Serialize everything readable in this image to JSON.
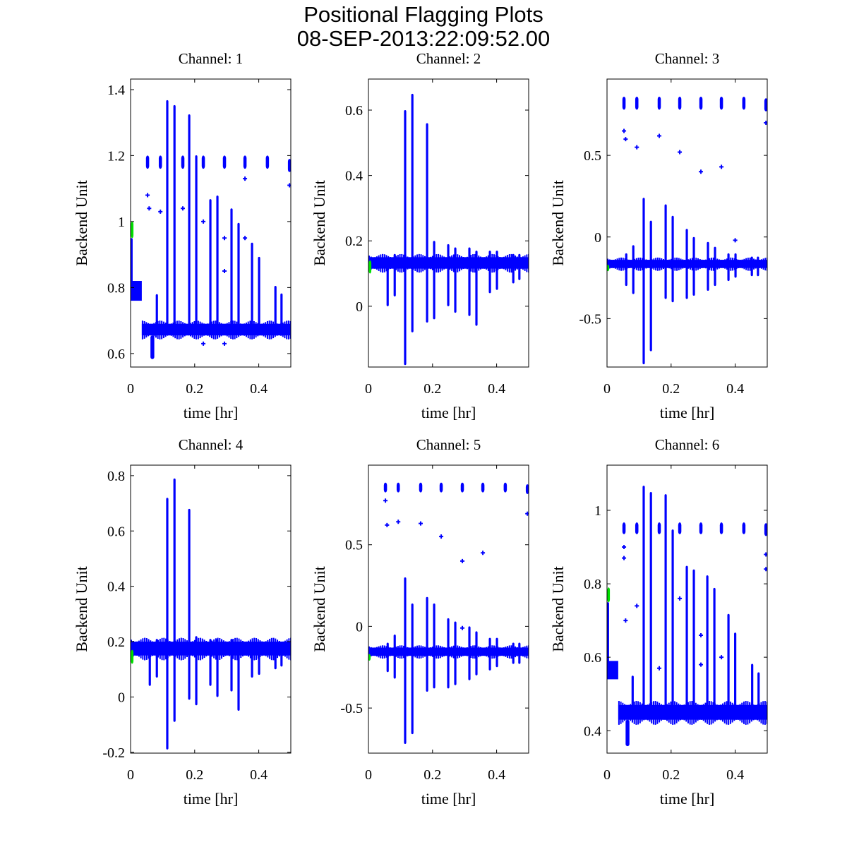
{
  "chart_data": {
    "type": "scatter",
    "title": "Positional Flagging Plots",
    "subtitle": "08-SEP-2013:22:09:52.00",
    "colors": {
      "data": "#0000ff",
      "flagged": "#00e000",
      "axes": "#000000"
    },
    "panels": [
      {
        "title": "Channel: 1",
        "xlabel": "time [hr]",
        "ylabel": "Backend Unit",
        "xlim": [
          0,
          0.5
        ],
        "ylim": [
          0.559,
          1.432
        ],
        "xticks": [
          0,
          0.2,
          0.4
        ],
        "yticks": [
          0.6,
          0.8,
          1,
          1.2,
          1.4
        ],
        "baseline": {
          "t": [
            0.035,
            0.5
          ],
          "min": 0.655,
          "max": 0.69
        },
        "early": {
          "t": [
            0,
            0.035
          ],
          "min": 0.76,
          "max": 0.82
        },
        "dip": {
          "t": 0.068,
          "min": 0.583
        },
        "green": {
          "t": 0.005,
          "min": 0.95,
          "max": 1.0
        },
        "spikes": [
          [
            0.003,
            0.76,
            0.95
          ],
          [
            0.082,
            0.66,
            0.78
          ],
          [
            0.1145,
            0.66,
            1.368
          ],
          [
            0.137,
            0.66,
            1.353
          ],
          [
            0.183,
            0.66,
            1.325
          ],
          [
            0.205,
            0.66,
            1.201
          ],
          [
            0.249,
            0.66,
            1.068
          ],
          [
            0.271,
            0.66,
            1.079
          ],
          [
            0.315,
            0.66,
            1.04
          ],
          [
            0.337,
            0.66,
            0.996
          ],
          [
            0.379,
            0.66,
            0.936
          ],
          [
            0.401,
            0.66,
            0.893
          ],
          [
            0.452,
            0.66,
            0.805
          ],
          [
            0.471,
            0.66,
            0.782
          ]
        ],
        "clusters": [
          [
            0.053,
            1.16,
            1.2
          ],
          [
            0.093,
            1.16,
            1.2
          ],
          [
            0.163,
            1.16,
            1.2
          ],
          [
            0.227,
            1.16,
            1.2
          ],
          [
            0.293,
            1.16,
            1.2
          ],
          [
            0.357,
            1.16,
            1.2
          ],
          [
            0.427,
            1.16,
            1.2
          ],
          [
            0.496,
            1.15,
            1.19
          ]
        ],
        "outliers": [
          [
            0.053,
            1.08
          ],
          [
            0.058,
            1.04
          ],
          [
            0.093,
            1.03
          ],
          [
            0.163,
            1.04
          ],
          [
            0.227,
            1.0
          ],
          [
            0.293,
            0.95
          ],
          [
            0.293,
            0.85
          ],
          [
            0.357,
            0.95
          ],
          [
            0.357,
            1.13
          ],
          [
            0.496,
            1.11
          ],
          [
            0.227,
            0.63
          ],
          [
            0.293,
            0.63
          ]
        ]
      },
      {
        "title": "Channel: 2",
        "xlabel": "time [hr]",
        "ylabel": "Backend Unit",
        "xlim": [
          0,
          0.5
        ],
        "ylim": [
          -0.186,
          0.695
        ],
        "xticks": [
          0,
          0.2,
          0.4
        ],
        "yticks": [
          0,
          0.2,
          0.4,
          0.6
        ],
        "baseline": {
          "t": [
            0,
            0.5
          ],
          "min": 0.115,
          "max": 0.15
        },
        "green": {
          "t": 0.005,
          "min": 0.1,
          "max": 0.14
        },
        "spikes": [
          [
            0.06,
            0.0,
            0.14
          ],
          [
            0.082,
            0.03,
            0.16
          ],
          [
            0.1145,
            -0.18,
            0.6
          ],
          [
            0.137,
            -0.08,
            0.65
          ],
          [
            0.183,
            -0.05,
            0.56
          ],
          [
            0.205,
            -0.04,
            0.2
          ],
          [
            0.249,
            0.0,
            0.19
          ],
          [
            0.271,
            -0.02,
            0.18
          ],
          [
            0.315,
            -0.03,
            0.18
          ],
          [
            0.337,
            -0.06,
            0.17
          ],
          [
            0.379,
            0.04,
            0.17
          ],
          [
            0.401,
            0.05,
            0.17
          ],
          [
            0.452,
            0.07,
            0.16
          ],
          [
            0.471,
            0.08,
            0.16
          ]
        ],
        "clusters": [],
        "outliers": []
      },
      {
        "title": "Channel: 3",
        "xlabel": "time [hr]",
        "ylabel": "Backend Unit",
        "xlim": [
          0,
          0.5
        ],
        "ylim": [
          -0.797,
          0.968
        ],
        "xticks": [
          0,
          0.2,
          0.4
        ],
        "yticks": [
          -0.5,
          0,
          0.5
        ],
        "baseline": {
          "t": [
            0,
            0.5
          ],
          "min": -0.19,
          "max": -0.14
        },
        "green": {
          "t": 0.003,
          "min": -0.21,
          "max": -0.17
        },
        "spikes": [
          [
            0.06,
            -0.3,
            -0.1
          ],
          [
            0.082,
            -0.35,
            -0.05
          ],
          [
            0.1145,
            -0.78,
            0.24
          ],
          [
            0.137,
            -0.7,
            0.1
          ],
          [
            0.183,
            -0.38,
            0.2
          ],
          [
            0.205,
            -0.4,
            0.13
          ],
          [
            0.249,
            -0.38,
            0.05
          ],
          [
            0.271,
            -0.36,
            0.0
          ],
          [
            0.315,
            -0.33,
            -0.03
          ],
          [
            0.337,
            -0.3,
            -0.06
          ],
          [
            0.379,
            -0.27,
            -0.1
          ],
          [
            0.401,
            -0.25,
            -0.1
          ],
          [
            0.452,
            -0.24,
            -0.12
          ],
          [
            0.471,
            -0.24,
            -0.12
          ]
        ],
        "clusters": [
          [
            0.053,
            0.78,
            0.86
          ],
          [
            0.093,
            0.78,
            0.86
          ],
          [
            0.163,
            0.78,
            0.86
          ],
          [
            0.227,
            0.78,
            0.86
          ],
          [
            0.293,
            0.78,
            0.86
          ],
          [
            0.357,
            0.78,
            0.86
          ],
          [
            0.427,
            0.78,
            0.86
          ],
          [
            0.496,
            0.77,
            0.85
          ]
        ],
        "outliers": [
          [
            0.053,
            0.65
          ],
          [
            0.058,
            0.6
          ],
          [
            0.093,
            0.55
          ],
          [
            0.163,
            0.62
          ],
          [
            0.227,
            0.52
          ],
          [
            0.293,
            0.4
          ],
          [
            0.357,
            0.43
          ],
          [
            0.496,
            0.7
          ],
          [
            0.4,
            -0.02
          ]
        ]
      },
      {
        "title": "Channel: 4",
        "xlabel": "time [hr]",
        "ylabel": "Backend Unit",
        "xlim": [
          0,
          0.5
        ],
        "ylim": [
          -0.203,
          0.838
        ],
        "xticks": [
          0,
          0.2,
          0.4
        ],
        "yticks": [
          -0.2,
          0,
          0.2,
          0.4,
          0.6,
          0.8
        ],
        "baseline": {
          "t": [
            0,
            0.5
          ],
          "min": 0.15,
          "max": 0.2
        },
        "green": {
          "t": 0.005,
          "min": 0.12,
          "max": 0.17
        },
        "spikes": [
          [
            0.06,
            0.04,
            0.2
          ],
          [
            0.082,
            0.07,
            0.21
          ],
          [
            0.1145,
            -0.19,
            0.72
          ],
          [
            0.137,
            -0.09,
            0.79
          ],
          [
            0.183,
            -0.01,
            0.68
          ],
          [
            0.205,
            -0.03,
            0.22
          ],
          [
            0.249,
            0.04,
            0.21
          ],
          [
            0.271,
            0.0,
            0.21
          ],
          [
            0.315,
            0.02,
            0.21
          ],
          [
            0.337,
            -0.05,
            0.2
          ],
          [
            0.379,
            0.07,
            0.2
          ],
          [
            0.401,
            0.08,
            0.2
          ],
          [
            0.452,
            0.1,
            0.2
          ],
          [
            0.471,
            0.11,
            0.2
          ]
        ],
        "clusters": [],
        "outliers": []
      },
      {
        "title": "Channel: 5",
        "xlabel": "time [hr]",
        "ylabel": "Backend Unit",
        "xlim": [
          0,
          0.5
        ],
        "ylim": [
          -0.776,
          0.987
        ],
        "xticks": [
          0,
          0.2,
          0.4
        ],
        "yticks": [
          -0.5,
          0,
          0.5
        ],
        "baseline": {
          "t": [
            0,
            0.5
          ],
          "min": -0.18,
          "max": -0.13
        },
        "green": {
          "t": 0.003,
          "min": -0.21,
          "max": -0.17
        },
        "spikes": [
          [
            0.06,
            -0.28,
            -0.1
          ],
          [
            0.082,
            -0.32,
            -0.05
          ],
          [
            0.1145,
            -0.72,
            0.3
          ],
          [
            0.137,
            -0.66,
            0.14
          ],
          [
            0.183,
            -0.4,
            0.18
          ],
          [
            0.205,
            -0.38,
            0.14
          ],
          [
            0.249,
            -0.38,
            0.05
          ],
          [
            0.271,
            -0.36,
            0.03
          ],
          [
            0.315,
            -0.33,
            0.0
          ],
          [
            0.337,
            -0.3,
            -0.03
          ],
          [
            0.379,
            -0.27,
            -0.07
          ],
          [
            0.401,
            -0.25,
            -0.07
          ],
          [
            0.452,
            -0.23,
            -0.1
          ],
          [
            0.471,
            -0.23,
            -0.1
          ]
        ],
        "clusters": [
          [
            0.053,
            0.82,
            0.88
          ],
          [
            0.093,
            0.82,
            0.88
          ],
          [
            0.163,
            0.82,
            0.88
          ],
          [
            0.227,
            0.82,
            0.88
          ],
          [
            0.293,
            0.82,
            0.88
          ],
          [
            0.357,
            0.82,
            0.88
          ],
          [
            0.427,
            0.82,
            0.88
          ],
          [
            0.496,
            0.81,
            0.87
          ]
        ],
        "outliers": [
          [
            0.053,
            0.77
          ],
          [
            0.058,
            0.62
          ],
          [
            0.093,
            0.64
          ],
          [
            0.163,
            0.63
          ],
          [
            0.227,
            0.55
          ],
          [
            0.293,
            0.4
          ],
          [
            0.357,
            0.45
          ],
          [
            0.496,
            0.69
          ],
          [
            0.293,
            -0.01
          ]
        ]
      },
      {
        "title": "Channel: 6",
        "xlabel": "time [hr]",
        "ylabel": "Backend Unit",
        "xlim": [
          0,
          0.5
        ],
        "ylim": [
          0.339,
          1.123
        ],
        "xticks": [
          0,
          0.2,
          0.4
        ],
        "yticks": [
          0.4,
          0.6,
          0.8,
          1
        ],
        "baseline": {
          "t": [
            0.035,
            0.5
          ],
          "min": 0.43,
          "max": 0.47
        },
        "early": {
          "t": [
            0,
            0.035
          ],
          "min": 0.54,
          "max": 0.59
        },
        "dip": {
          "t": 0.064,
          "min": 0.358
        },
        "green": {
          "t": 0.005,
          "min": 0.75,
          "max": 0.79
        },
        "spikes": [
          [
            0.003,
            0.55,
            0.75
          ],
          [
            0.08,
            0.44,
            0.55
          ],
          [
            0.1145,
            0.43,
            1.067
          ],
          [
            0.137,
            0.43,
            1.05
          ],
          [
            0.183,
            0.43,
            1.044
          ],
          [
            0.205,
            0.43,
            0.948
          ],
          [
            0.249,
            0.43,
            0.849
          ],
          [
            0.271,
            0.43,
            0.839
          ],
          [
            0.313,
            0.43,
            0.823
          ],
          [
            0.335,
            0.43,
            0.789
          ],
          [
            0.379,
            0.43,
            0.718
          ],
          [
            0.4,
            0.43,
            0.667
          ],
          [
            0.453,
            0.43,
            0.582
          ],
          [
            0.473,
            0.43,
            0.559
          ]
        ],
        "clusters": [
          [
            0.053,
            0.935,
            0.967
          ],
          [
            0.093,
            0.935,
            0.967
          ],
          [
            0.163,
            0.935,
            0.967
          ],
          [
            0.227,
            0.935,
            0.967
          ],
          [
            0.293,
            0.935,
            0.967
          ],
          [
            0.357,
            0.935,
            0.967
          ],
          [
            0.427,
            0.935,
            0.967
          ],
          [
            0.496,
            0.93,
            0.965
          ]
        ],
        "outliers": [
          [
            0.053,
            0.9
          ],
          [
            0.053,
            0.87
          ],
          [
            0.058,
            0.7
          ],
          [
            0.093,
            0.74
          ],
          [
            0.163,
            0.57
          ],
          [
            0.227,
            0.76
          ],
          [
            0.293,
            0.66
          ],
          [
            0.293,
            0.58
          ],
          [
            0.357,
            0.6
          ],
          [
            0.496,
            0.84
          ],
          [
            0.496,
            0.88
          ]
        ]
      }
    ]
  }
}
